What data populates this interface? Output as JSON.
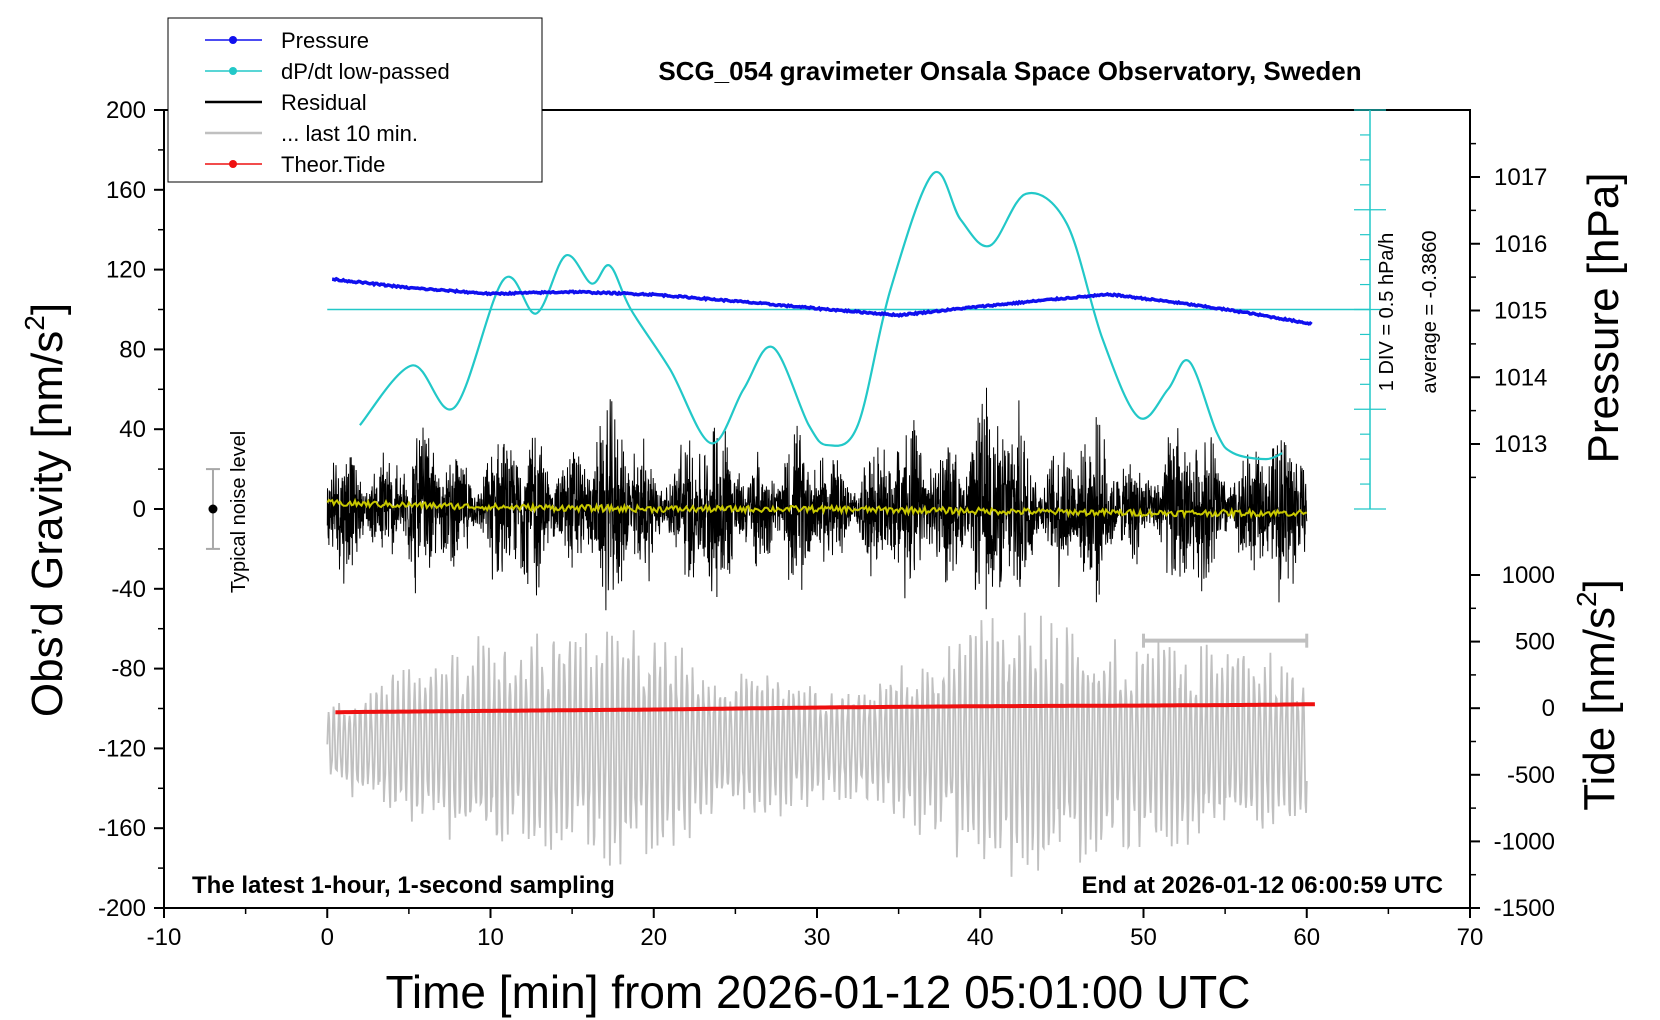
{
  "chart_data": {
    "type": "line",
    "title": "SCG_054 gravimeter Onsala Space Observatory, Sweden",
    "xlabel": "Time [min] from 2026-01-12 05:01:00 UTC",
    "ylabel_left_main": "Obs’d Gravity [nm/s",
    "ylabel_left_sup": "2",
    "ylabel_left_end": "]",
    "ylabel_right_pressure": "Pressure [hPa]",
    "ylabel_right_tide_main": "Tide [nm/s",
    "ylabel_right_tide_sup": "2",
    "ylabel_right_tide_end": "]",
    "xlim": [
      -10,
      70
    ],
    "ylim_gravity": [
      -200,
      200
    ],
    "ylim_tide": [
      -1500,
      1000
    ],
    "x_ticks": [
      -10,
      0,
      10,
      20,
      30,
      40,
      50,
      60,
      70
    ],
    "y_ticks_gravity": [
      -200,
      -160,
      -120,
      -80,
      -40,
      0,
      40,
      80,
      120,
      160,
      200
    ],
    "y_ticks_pressure": [
      1013,
      1014,
      1015,
      1016,
      1017
    ],
    "y_ticks_tide": [
      -1500,
      -1000,
      -500,
      0,
      500,
      1000
    ],
    "bottom_left_note": "The latest 1-hour, 1-second sampling",
    "bottom_right_note": "End at 2026-01-12 06:00:59 UTC",
    "noise_label": "Typical noise level",
    "noise_bar": {
      "x": -7,
      "center": 0,
      "low": -20,
      "high": 20
    },
    "dpdt_scale_label": "1 DIV = 0.5 hPa/h",
    "dpdt_average_label": "average = -0.3860",
    "legend_position": "top-left",
    "legend": [
      {
        "name": "Pressure",
        "color": "#1010ee",
        "marker": true
      },
      {
        "name": "dP/dt low-passed",
        "color": "#22c8c8",
        "marker": true
      },
      {
        "name": "Residual",
        "color": "#000000",
        "marker": false
      },
      {
        "name": "... last 10 min.",
        "color": "#c0c0c0",
        "marker": false
      },
      {
        "name": "Theor.Tide",
        "color": "#ee1010",
        "marker": true
      }
    ],
    "series": [
      {
        "name": "Pressure",
        "axis": "pressure",
        "color": "#1010ee",
        "x": [
          0.3,
          5,
          10,
          15,
          20,
          25,
          30,
          35,
          40,
          45,
          48,
          52,
          56,
          60.3
        ],
        "values": [
          1015.47,
          1015.34,
          1015.25,
          1015.28,
          1015.24,
          1015.14,
          1015.03,
          1014.93,
          1015.06,
          1015.18,
          1015.24,
          1015.12,
          1014.98,
          1014.8
        ]
      },
      {
        "name": "dP/dt low-passed",
        "axis": "gravity",
        "color": "#22c8c8",
        "x": [
          2,
          5.2,
          7.8,
          10.8,
          12.8,
          14.6,
          16.2,
          17.3,
          18.6,
          21,
          23.5,
          25.5,
          27.3,
          29.5,
          30.7,
          32.5,
          34.5,
          37.1,
          38.8,
          40.6,
          42.8,
          45.3,
          47.5,
          49.7,
          51.5,
          52.8,
          54.5,
          55.5,
          57.5,
          58.5
        ],
        "values": [
          42,
          72,
          51,
          115,
          98,
          127,
          113,
          122,
          100,
          70,
          33,
          60,
          81,
          42,
          32,
          42,
          110,
          168,
          145,
          132,
          158,
          143,
          85,
          46,
          60,
          74,
          38,
          28,
          25,
          28
        ]
      },
      {
        "name": "Residual",
        "axis": "gravity",
        "color": "#000000",
        "x_range": [
          0,
          60
        ],
        "envelope_times": [
          0,
          3,
          6,
          9,
          12,
          15,
          18,
          21,
          24,
          27,
          30,
          33,
          36,
          39,
          42,
          45,
          48,
          51,
          54,
          57,
          60
        ],
        "envelope": [
          40,
          55,
          50,
          50,
          55,
          65,
          60,
          55,
          60,
          55,
          45,
          50,
          55,
          75,
          70,
          65,
          45,
          55,
          55,
          60,
          50
        ]
      },
      {
        "name": "Residual smoothed",
        "axis": "gravity",
        "color": "#c8c800",
        "x": [
          0,
          10,
          20,
          30,
          40,
          50,
          60
        ],
        "values": [
          3,
          1,
          0,
          0,
          -1,
          -2,
          -2
        ]
      },
      {
        "name": "... last 10 min.",
        "axis": "gravity",
        "color": "#c0c0c0",
        "x_range": [
          0,
          60
        ],
        "center": -118,
        "envelope_times": [
          0,
          3,
          6,
          9,
          12,
          15,
          18,
          21,
          24,
          27,
          30,
          33,
          36,
          39,
          42,
          45,
          48,
          51,
          54,
          57,
          60
        ],
        "envelope": [
          20,
          35,
          45,
          55,
          55,
          60,
          65,
          60,
          35,
          40,
          30,
          35,
          45,
          60,
          70,
          65,
          55,
          60,
          55,
          50,
          40
        ]
      },
      {
        "name": "Theor.Tide",
        "axis": "tide",
        "color": "#ee1010",
        "x": [
          0.5,
          10,
          20,
          30,
          40,
          50,
          57,
          60.5
        ],
        "values": [
          -30,
          -20,
          -10,
          5,
          15,
          20,
          25,
          30
        ]
      }
    ],
    "gray_marker": {
      "x_start": 50,
      "x_end": 60,
      "value": -66
    }
  }
}
